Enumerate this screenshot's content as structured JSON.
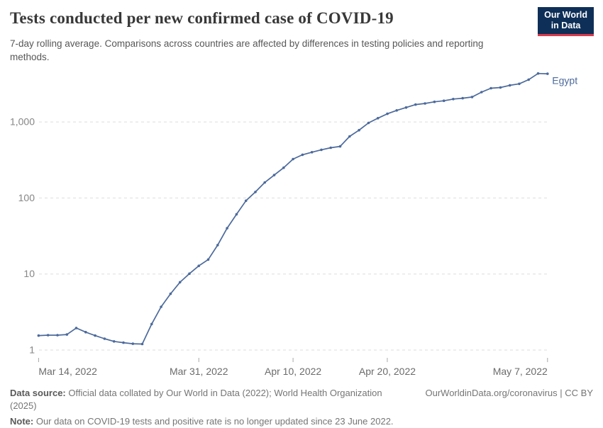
{
  "header": {
    "title": "Tests conducted per new confirmed case of COVID-19",
    "subtitle": "7-day rolling average. Comparisons across countries are affected by differences in testing policies and reporting methods.",
    "logo_line1": "Our World",
    "logo_line2": "in Data",
    "logo_bg_color": "#0e2f57",
    "logo_accent_color": "#d73b4c"
  },
  "chart_data": {
    "type": "line",
    "title": "Tests conducted per new confirmed case of COVID-19",
    "y_scale": "log",
    "ylim": [
      1,
      5000
    ],
    "grid": "dashed-horizontal",
    "legend_position": "end-of-line",
    "line_color": "#4c6a9c",
    "grid_color": "#dedede",
    "y_ticks": [
      {
        "value": 1,
        "label": "1"
      },
      {
        "value": 10,
        "label": "10"
      },
      {
        "value": 100,
        "label": "100"
      },
      {
        "value": 1000,
        "label": "1,000"
      }
    ],
    "x_ticks": [
      {
        "label": "Mar 14, 2022",
        "day_index": 0,
        "anchor": "start"
      },
      {
        "label": "Mar 31, 2022",
        "day_index": 17,
        "anchor": "middle"
      },
      {
        "label": "Apr 10, 2022",
        "day_index": 27,
        "anchor": "middle"
      },
      {
        "label": "Apr 20, 2022",
        "day_index": 37,
        "anchor": "middle"
      },
      {
        "label": "May 7, 2022",
        "day_index": 54,
        "anchor": "end"
      }
    ],
    "series": [
      {
        "name": "Egypt",
        "color": "#4c6a9c",
        "dates": [
          "Mar 14",
          "Mar 15",
          "Mar 16",
          "Mar 17",
          "Mar 18",
          "Mar 19",
          "Mar 20",
          "Mar 21",
          "Mar 22",
          "Mar 23",
          "Mar 24",
          "Mar 25",
          "Mar 26",
          "Mar 27",
          "Mar 28",
          "Mar 29",
          "Mar 30",
          "Mar 31",
          "Apr 1",
          "Apr 2",
          "Apr 3",
          "Apr 4",
          "Apr 5",
          "Apr 6",
          "Apr 7",
          "Apr 8",
          "Apr 9",
          "Apr 10",
          "Apr 11",
          "Apr 12",
          "Apr 13",
          "Apr 14",
          "Apr 15",
          "Apr 16",
          "Apr 17",
          "Apr 18",
          "Apr 19",
          "Apr 20",
          "Apr 21",
          "Apr 22",
          "Apr 23",
          "Apr 24",
          "Apr 25",
          "Apr 26",
          "Apr 27",
          "Apr 28",
          "Apr 29",
          "Apr 30",
          "May 1",
          "May 2",
          "May 3",
          "May 4",
          "May 5",
          "May 6",
          "May 7"
        ],
        "values": [
          1.55,
          1.57,
          1.57,
          1.6,
          1.95,
          1.72,
          1.55,
          1.41,
          1.3,
          1.25,
          1.21,
          1.2,
          2.2,
          3.7,
          5.5,
          7.8,
          10.1,
          12.8,
          15.5,
          24,
          40,
          61,
          92,
          120,
          160,
          200,
          250,
          325,
          370,
          400,
          430,
          458,
          477,
          645,
          780,
          970,
          1120,
          1280,
          1420,
          1550,
          1690,
          1750,
          1840,
          1900,
          2000,
          2050,
          2130,
          2470,
          2780,
          2840,
          3030,
          3170,
          3600,
          4340,
          4300
        ]
      }
    ]
  },
  "footer": {
    "data_source_label": "Data source:",
    "data_source_text": " Official data collated by Our World in Data (2022); World Health Organization (2025)",
    "credit": "OurWorldinData.org/coronavirus | CC BY",
    "note_label": "Note:",
    "note_text": " Our data on COVID-19 tests and positive rate is no longer updated since 23 June 2022."
  }
}
